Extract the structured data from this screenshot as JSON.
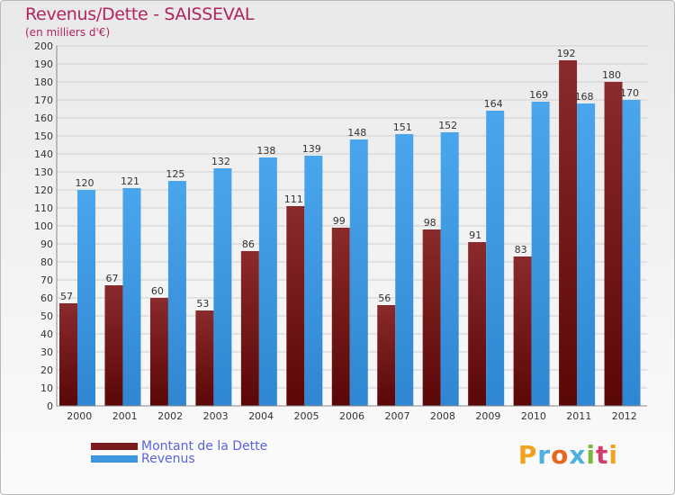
{
  "title": "Revenus/Dette - SAISSEVAL",
  "subtitle": "(en milliers d'€)",
  "logo_text": "Proxiti",
  "colors": {
    "debt": "#7a1b1e",
    "revenue": "#3d97e0",
    "title": "#b2245e",
    "legend_text": "#5b64d8"
  },
  "legend": {
    "debt_label": "Montant de la Dette",
    "revenue_label": "Revenus"
  },
  "chart_data": {
    "type": "bar",
    "title": "Revenus/Dette - SAISSEVAL",
    "subtitle": "(en milliers d'€)",
    "xlabel": "",
    "ylabel": "",
    "ylim": [
      0,
      200
    ],
    "y_ticks": [
      0,
      10,
      20,
      30,
      40,
      50,
      60,
      70,
      80,
      90,
      100,
      110,
      120,
      130,
      140,
      150,
      160,
      170,
      180,
      190,
      200
    ],
    "grid": true,
    "legend_position": "bottom-left",
    "categories": [
      "2000",
      "2001",
      "2002",
      "2003",
      "2004",
      "2005",
      "2006",
      "2007",
      "2008",
      "2009",
      "2010",
      "2011",
      "2012"
    ],
    "series": [
      {
        "name": "Montant de la Dette",
        "values": [
          57,
          67,
          60,
          53,
          86,
          111,
          99,
          56,
          98,
          91,
          83,
          192,
          180
        ]
      },
      {
        "name": "Revenus",
        "values": [
          120,
          121,
          125,
          132,
          138,
          139,
          148,
          151,
          152,
          164,
          169,
          168,
          170
        ]
      }
    ]
  }
}
